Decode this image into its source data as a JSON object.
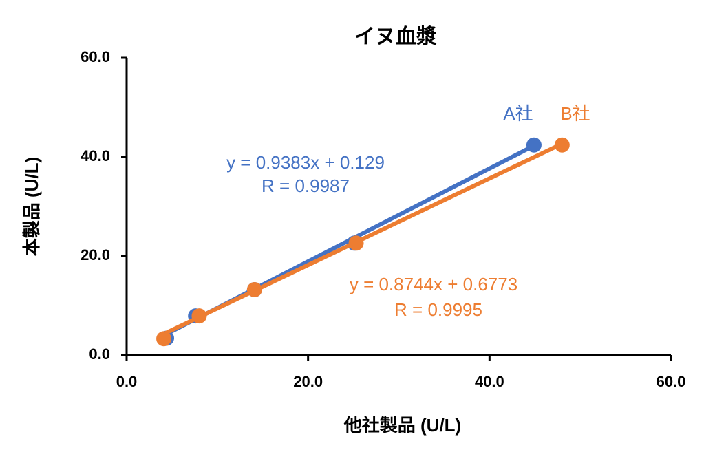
{
  "chart_data": {
    "type": "scatter",
    "title": "イヌ血漿",
    "x_label": "他社製品 (U/L)",
    "y_label": "本製品 (U/L)",
    "xlim": [
      0,
      60
    ],
    "ylim": [
      0,
      60
    ],
    "xticks": [
      {
        "value": 0,
        "label": "0.0"
      },
      {
        "value": 20,
        "label": "20.0"
      },
      {
        "value": 40,
        "label": "40.0"
      },
      {
        "value": 60,
        "label": "60.0"
      }
    ],
    "yticks": [
      {
        "value": 0,
        "label": "0.0"
      },
      {
        "value": 20,
        "label": "20.0"
      },
      {
        "value": 40,
        "label": "40.0"
      },
      {
        "value": 60,
        "label": "60.0"
      }
    ],
    "series": [
      {
        "name": "A社",
        "color": "#4472c4",
        "x": [
          4.4,
          7.6,
          14.1,
          25.1,
          44.9
        ],
        "values": [
          3.4,
          7.9,
          13.2,
          22.6,
          42.4
        ],
        "trendline": {
          "slope": 0.9383,
          "intercept": 0.129,
          "equation": "y = 0.9383x + 0.129",
          "r": "R = 0.9987"
        }
      },
      {
        "name": "B社",
        "color": "#ed7d31",
        "x": [
          4.1,
          8.0,
          14.1,
          25.3,
          48.0
        ],
        "values": [
          3.3,
          7.9,
          13.2,
          22.6,
          42.4
        ],
        "trendline": {
          "slope": 0.8744,
          "intercept": 0.6773,
          "equation": "y = 0.8744x + 0.6773",
          "r": "R = 0.9995"
        }
      }
    ]
  }
}
